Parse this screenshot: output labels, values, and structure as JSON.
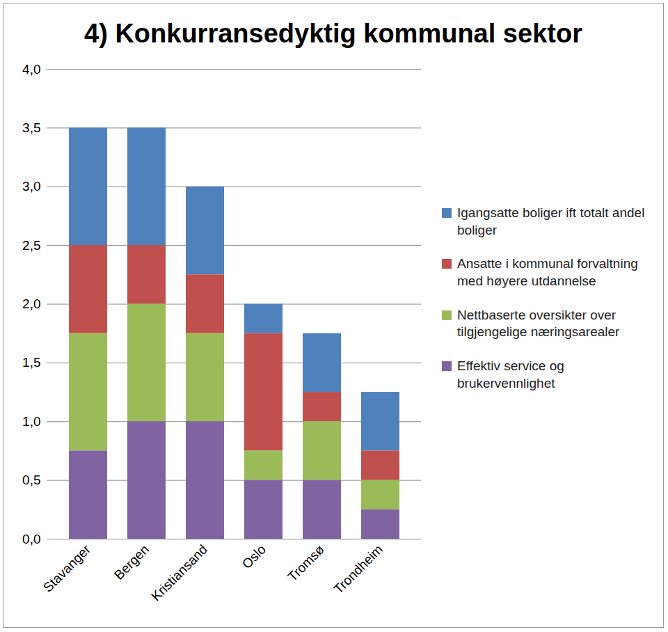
{
  "chart_data": {
    "type": "bar",
    "stacked": true,
    "title": "4) Konkurransedyktig kommunal sektor",
    "categories": [
      "Stavanger",
      "Bergen",
      "Kristiansand",
      "Oslo",
      "Tromsø",
      "Trondheim"
    ],
    "series": [
      {
        "name": "Igangsatte boliger ift totalt andel boliger",
        "color": "#4f81bd",
        "values": [
          1.0,
          1.0,
          0.75,
          0.25,
          0.5,
          0.5
        ]
      },
      {
        "name": "Ansatte i kommunal forvaltning med høyere utdannelse",
        "color": "#c0504d",
        "values": [
          0.75,
          0.5,
          0.5,
          1.0,
          0.25,
          0.25
        ]
      },
      {
        "name": "Nettbaserte oversikter over tilgjengelige næringsarealer",
        "color": "#9bbb59",
        "values": [
          1.0,
          1.0,
          0.75,
          0.25,
          0.5,
          0.25
        ]
      },
      {
        "name": "Effektiv service og brukervennlighet",
        "color": "#8064a2",
        "values": [
          0.75,
          1.0,
          1.0,
          0.5,
          0.5,
          0.25
        ]
      }
    ],
    "ylim": [
      0,
      4
    ],
    "yticks": [
      {
        "value": 0,
        "label": "0,0"
      },
      {
        "value": 0.5,
        "label": "0,5"
      },
      {
        "value": 1,
        "label": "1,0"
      },
      {
        "value": 1.5,
        "label": "1,5"
      },
      {
        "value": 2,
        "label": "2,0"
      },
      {
        "value": 2.5,
        "label": "2,5"
      },
      {
        "value": 3,
        "label": "3,0"
      },
      {
        "value": 3.5,
        "label": "3,5"
      },
      {
        "value": 4,
        "label": "4,0"
      }
    ],
    "grid": true,
    "legend": "right"
  }
}
